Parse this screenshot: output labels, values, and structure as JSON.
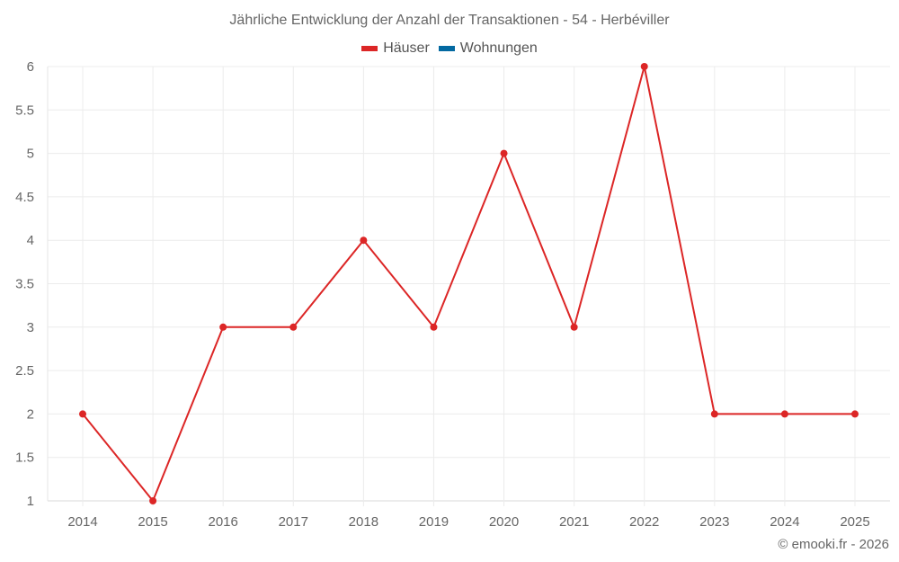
{
  "chart_data": {
    "type": "line",
    "title": "Jährliche Entwicklung der Anzahl der Transaktionen - 54 - Herbéviller",
    "xlabel": "",
    "ylabel": "",
    "categories": [
      "2014",
      "2015",
      "2016",
      "2017",
      "2018",
      "2019",
      "2020",
      "2021",
      "2022",
      "2023",
      "2024",
      "2025"
    ],
    "series": [
      {
        "name": "Häuser",
        "color": "#dc2626",
        "values": [
          2,
          1,
          3,
          3,
          4,
          3,
          5,
          3,
          6,
          2,
          2,
          2
        ]
      },
      {
        "name": "Wohnungen",
        "color": "#0369a1",
        "values": []
      }
    ],
    "ylim": [
      1,
      6
    ],
    "yticks": [
      "1",
      "1.5",
      "2",
      "2.5",
      "3",
      "3.5",
      "4",
      "4.5",
      "5",
      "5.5",
      "6"
    ],
    "grid": true,
    "legend_position": "top"
  },
  "legend": {
    "items": [
      {
        "label": "Häuser",
        "color": "#dc2626"
      },
      {
        "label": "Wohnungen",
        "color": "#0369a1"
      }
    ]
  },
  "credit": "© emooki.fr - 2026"
}
